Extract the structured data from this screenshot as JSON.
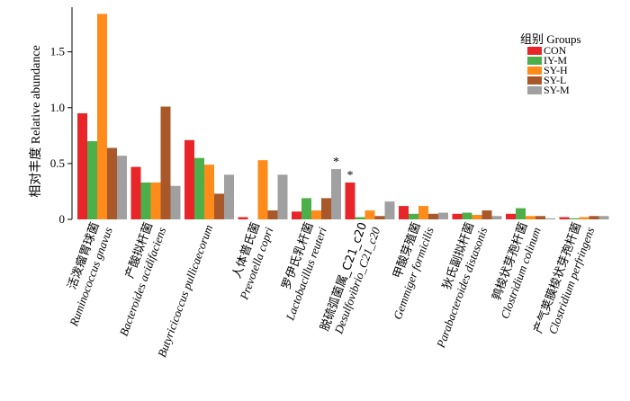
{
  "chart_data": {
    "type": "bar",
    "ylabel": "相对丰度 Relative abundance",
    "ylim": [
      0,
      1.9
    ],
    "yticks": [
      "0",
      "0.5",
      "1.0",
      "1.5"
    ],
    "legend": {
      "title": "组别 Groups",
      "placement": "top-right"
    },
    "categories": [
      {
        "cn": "活泼瘤胃球菌",
        "latin": "Ruminococcus gnavus"
      },
      {
        "cn": "产酸拟杆菌",
        "latin": "Bacteroides acidifaciens"
      },
      {
        "cn": "",
        "latin": "Butyricicoccus pullicaecorum"
      },
      {
        "cn": "人体普氏菌",
        "latin": "Prevotella copri"
      },
      {
        "cn": "罗伊氏乳杆菌",
        "latin": "Lactobacillus reuteri"
      },
      {
        "cn": "脱硫弧菌属_C21_c20",
        "latin": "Desulfovibrio_C21_c20"
      },
      {
        "cn": "甲酸芽殖菌",
        "latin": "Gemmiger formicilis"
      },
      {
        "cn": "狄氏副拟杆菌",
        "latin": "Parabacteroides distasonis"
      },
      {
        "cn": "鹑梭状芽孢杆菌",
        "latin": "Clostridium colinum"
      },
      {
        "cn": "产气荚膜梭状芽孢杆菌",
        "latin": "Clostridium perfringens"
      }
    ],
    "series": [
      {
        "name": "CON",
        "color": "#e8262a",
        "values": [
          0.95,
          0.47,
          0.71,
          0.02,
          0.07,
          0.33,
          0.12,
          0.05,
          0.05,
          0.02
        ]
      },
      {
        "name": "IY-M",
        "color": "#4daf4a",
        "values": [
          0.7,
          0.33,
          0.55,
          0.0,
          0.19,
          0.02,
          0.05,
          0.06,
          0.1,
          0.01
        ]
      },
      {
        "name": "SY-H",
        "color": "#ff8c1a",
        "values": [
          1.84,
          0.33,
          0.49,
          0.53,
          0.08,
          0.08,
          0.12,
          0.04,
          0.03,
          0.02
        ]
      },
      {
        "name": "SY-L",
        "color": "#a9582a",
        "values": [
          0.64,
          1.01,
          0.23,
          0.08,
          0.19,
          0.03,
          0.05,
          0.08,
          0.03,
          0.03
        ]
      },
      {
        "name": "SY-M",
        "color": "#a0a0a0",
        "values": [
          0.57,
          0.3,
          0.4,
          0.4,
          0.45,
          0.16,
          0.06,
          0.03,
          0.01,
          0.03
        ]
      }
    ],
    "annotations": [
      {
        "text": "*",
        "category_index": 4,
        "series_index": 4
      },
      {
        "text": "*",
        "category_index": 5,
        "series_index": 0
      }
    ]
  }
}
